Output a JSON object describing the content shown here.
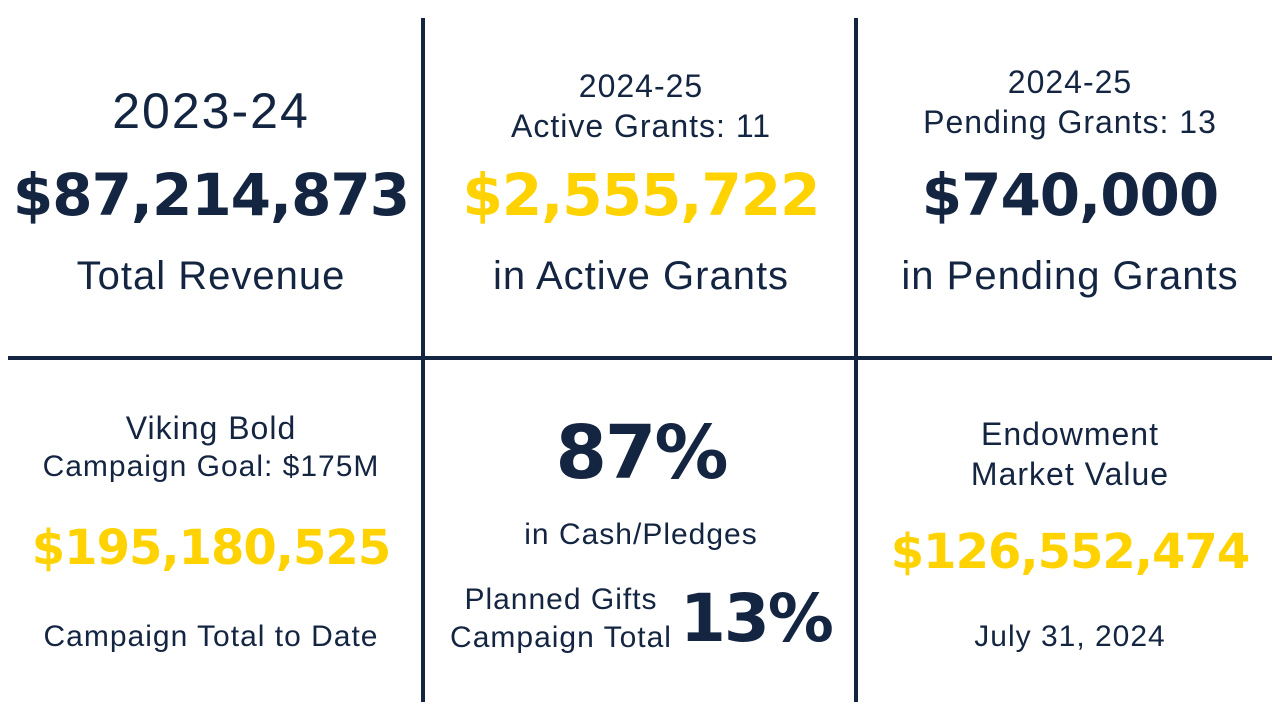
{
  "colors": {
    "navy": "#142542",
    "gold": "#FFD200",
    "background": "#ffffff"
  },
  "total_revenue": {
    "year": "2023-24",
    "amount": "$87,214,873",
    "caption": "Total Revenue"
  },
  "active_grants": {
    "year": "2024-25",
    "count_label": "Active Grants: 11",
    "amount": "$2,555,722",
    "caption": "in Active Grants"
  },
  "pending_grants": {
    "year": "2024-25",
    "count_label": "Pending Grants: 13",
    "amount": "$740,000",
    "caption": "in Pending Grants"
  },
  "campaign": {
    "name": "Viking Bold",
    "goal_label": "Campaign Goal: $175M",
    "amount": "$195,180,525",
    "caption": "Campaign Total to Date"
  },
  "campaign_breakdown": {
    "cash_percent": "87%",
    "cash_caption": "in Cash/Pledges",
    "planned_line1": "Planned Gifts",
    "planned_line2": "Campaign Total",
    "planned_percent": "13%"
  },
  "endowment": {
    "line1": "Endowment",
    "line2": "Market Value",
    "amount": "$126,552,474",
    "date": "July 31, 2024"
  }
}
